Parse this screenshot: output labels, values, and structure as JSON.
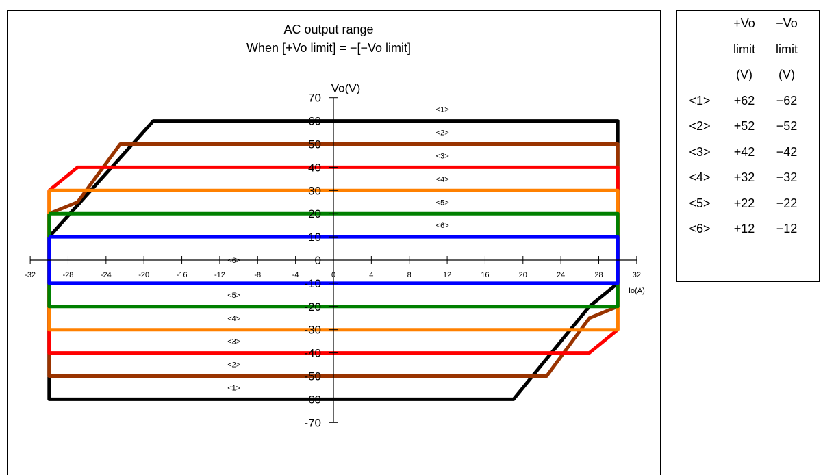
{
  "chart_data": {
    "type": "line",
    "title": "AC output range",
    "subtitle": "When [+Vo limit] = −[−Vo limit]",
    "xlabel": "Io(A)",
    "ylabel": "Vo(V)",
    "xlim": [
      -32,
      32
    ],
    "ylim": [
      -70,
      70
    ],
    "x_ticks": [
      -32,
      -28,
      -24,
      -20,
      -16,
      -12,
      -8,
      -4,
      0,
      4,
      8,
      12,
      16,
      20,
      24,
      28,
      32
    ],
    "x_tick_labels": [
      "-32",
      "-28",
      "-24",
      "-20",
      "-16",
      "-12",
      "-8",
      "-4",
      "0",
      "4",
      "8",
      "12",
      "16",
      "20",
      "24",
      "28",
      "32"
    ],
    "y_ticks": [
      -70,
      -60,
      -50,
      -40,
      -30,
      -20,
      -10,
      0,
      10,
      20,
      30,
      40,
      50,
      60,
      70
    ],
    "y_tick_labels": [
      "-70",
      "-60",
      "-50",
      "-40",
      "-30",
      "-20",
      "-10",
      "0",
      "10",
      "20",
      "30",
      "40",
      "50",
      "60",
      "70"
    ],
    "grid": false,
    "series": [
      {
        "name": "<1>",
        "color": "#000000",
        "x": [
          -30,
          -19,
          30,
          30,
          27,
          19,
          -30,
          -30
        ],
        "y": [
          10,
          60,
          60,
          -10,
          -20,
          -60,
          -60,
          10
        ]
      },
      {
        "name": "<2>",
        "color": "#993300",
        "x": [
          -30,
          -27,
          -22.5,
          30,
          30,
          27,
          22.5,
          -30,
          -30
        ],
        "y": [
          20,
          25,
          50,
          50,
          -20,
          -25,
          -50,
          -50,
          20
        ]
      },
      {
        "name": "<3>",
        "color": "#ff0000",
        "x": [
          -30,
          -27,
          30,
          30,
          27,
          -30,
          -30
        ],
        "y": [
          30,
          40,
          40,
          -30,
          -40,
          -40,
          30
        ]
      },
      {
        "name": "<4>",
        "color": "#ff8000",
        "x": [
          -30,
          30,
          30,
          -30,
          -30
        ],
        "y": [
          30,
          30,
          -30,
          -30,
          30
        ]
      },
      {
        "name": "<5>",
        "color": "#008000",
        "x": [
          -30,
          30,
          30,
          -30,
          -30
        ],
        "y": [
          20,
          20,
          -20,
          -20,
          20
        ]
      },
      {
        "name": "<6>",
        "color": "#0000ff",
        "x": [
          -30,
          30,
          30,
          -30,
          -30
        ],
        "y": [
          10,
          10,
          -10,
          -10,
          10
        ]
      }
    ],
    "annotations": [
      {
        "text": "<1>",
        "x": 11.5,
        "y": 65
      },
      {
        "text": "<2>",
        "x": 11.5,
        "y": 55
      },
      {
        "text": "<3>",
        "x": 11.5,
        "y": 45
      },
      {
        "text": "<4>",
        "x": 11.5,
        "y": 35
      },
      {
        "text": "<5>",
        "x": 11.5,
        "y": 25
      },
      {
        "text": "<6>",
        "x": 11.5,
        "y": 15
      },
      {
        "text": "<6>",
        "x": -10.5,
        "y": 0
      },
      {
        "text": "<5>",
        "x": -10.5,
        "y": -15
      },
      {
        "text": "<4>",
        "x": -10.5,
        "y": -25
      },
      {
        "text": "<3>",
        "x": -10.5,
        "y": -35
      },
      {
        "text": "<2>",
        "x": -10.5,
        "y": -45
      },
      {
        "text": "<1>",
        "x": -10.5,
        "y": -55
      }
    ]
  },
  "limit_table": {
    "headers": [
      [
        "",
        "",
        ""
      ],
      [
        "",
        "+Vo",
        "−Vo"
      ],
      [
        "",
        "limit",
        "limit"
      ],
      [
        "",
        "(V)",
        "(V)"
      ]
    ],
    "rows": [
      [
        "<1>",
        "+62",
        "−62"
      ],
      [
        "<2>",
        "+52",
        "−52"
      ],
      [
        "<3>",
        "+42",
        "−42"
      ],
      [
        "<4>",
        "+32",
        "−32"
      ],
      [
        "<5>",
        "+22",
        "−22"
      ],
      [
        "<6>",
        "+12",
        "−12"
      ]
    ]
  }
}
